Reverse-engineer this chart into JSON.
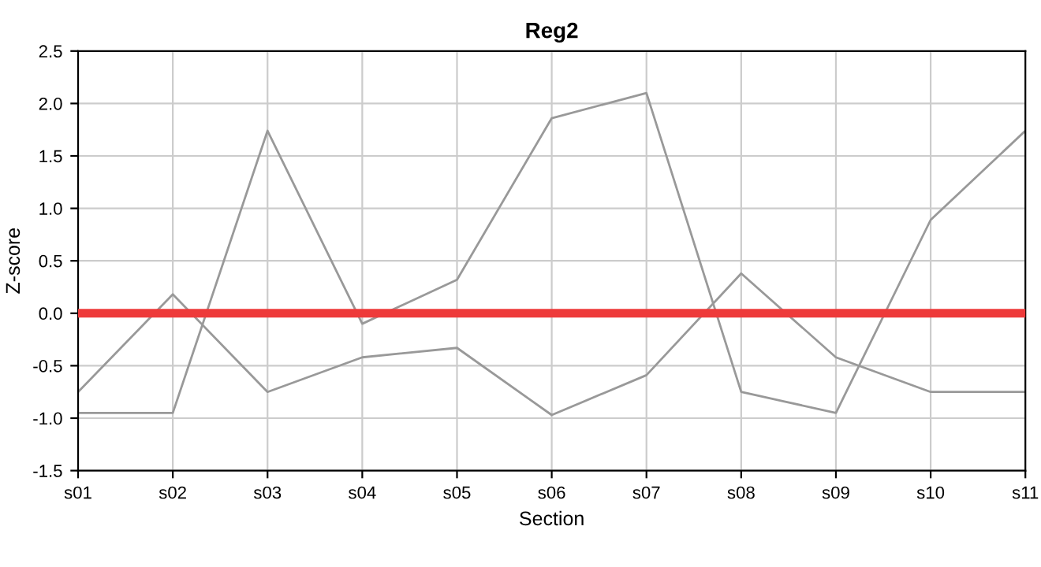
{
  "chart_data": {
    "type": "line",
    "title": "Reg2",
    "xlabel": "Section",
    "ylabel": "Z-score",
    "categories": [
      "s01",
      "s02",
      "s03",
      "s04",
      "s05",
      "s06",
      "s07",
      "s08",
      "s09",
      "s10",
      "s11"
    ],
    "series": [
      {
        "color": "#999999",
        "values": [
          -0.75,
          0.18,
          -0.75,
          -0.42,
          -0.33,
          -0.97,
          -0.59,
          0.38,
          -0.42,
          -0.75,
          -0.75
        ]
      },
      {
        "color": "#999999",
        "values": [
          -0.95,
          -0.95,
          1.74,
          -0.1,
          0.32,
          1.86,
          2.1,
          -0.75,
          -0.95,
          0.89,
          1.74
        ]
      }
    ],
    "ylim": [
      -1.5,
      2.5
    ],
    "yticks": [
      {
        "value": -1.5,
        "label": "-1.5"
      },
      {
        "value": -1.0,
        "label": "-1.0"
      },
      {
        "value": -0.5,
        "label": "-0.5"
      },
      {
        "value": 0.0,
        "label": "0.0"
      },
      {
        "value": 0.5,
        "label": "0.5"
      },
      {
        "value": 1.0,
        "label": "1.0"
      },
      {
        "value": 1.5,
        "label": "1.5"
      },
      {
        "value": 2.0,
        "label": "2.0"
      },
      {
        "value": 2.5,
        "label": "2.5"
      }
    ],
    "ref_lines": [
      {
        "axis": "y",
        "value": 0,
        "color": "#ee3a3a",
        "line_style": "solid"
      }
    ],
    "grid": true,
    "legend": false
  }
}
